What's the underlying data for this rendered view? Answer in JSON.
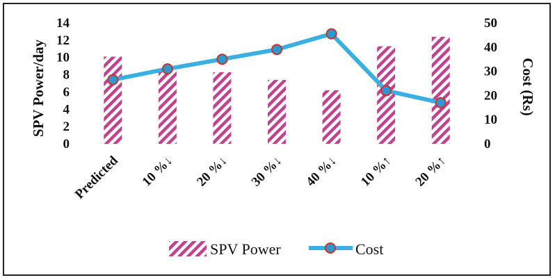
{
  "chart_data": {
    "type": "bar+line",
    "categories": [
      "Predicted",
      "10 %↓",
      "20 %↓",
      "30 %↓",
      "40 %↓",
      "10 %↑",
      "20 %↑"
    ],
    "series": [
      {
        "name": "SPV Power",
        "kind": "bar",
        "axis": "left",
        "values": [
          10.1,
          8.7,
          8.3,
          7.4,
          6.2,
          11.3,
          12.4
        ]
      },
      {
        "name": "Cost",
        "kind": "line",
        "axis": "right",
        "values": [
          26.5,
          31,
          35,
          39,
          45.5,
          22,
          17
        ]
      }
    ],
    "ylabel_left": "SPV Power/day",
    "ylabel_right": "Cost (Rs)",
    "ylim_left": [
      0,
      14
    ],
    "ylim_right": [
      0,
      50
    ],
    "yticks_left": [
      "0",
      "2",
      "4",
      "6",
      "8",
      "10",
      "12",
      "14"
    ],
    "yticks_right": [
      "0",
      "10",
      "20",
      "30",
      "40",
      "50"
    ],
    "legend": {
      "position": "bottom",
      "entries": [
        "SPV Power",
        "Cost"
      ]
    },
    "grid": false
  },
  "colors": {
    "bar_hatch": "#c2428f",
    "line": "#3ab0e0",
    "marker_fill": "#2f97cf",
    "marker_edge": "#d0302a",
    "frame": "#222222"
  }
}
